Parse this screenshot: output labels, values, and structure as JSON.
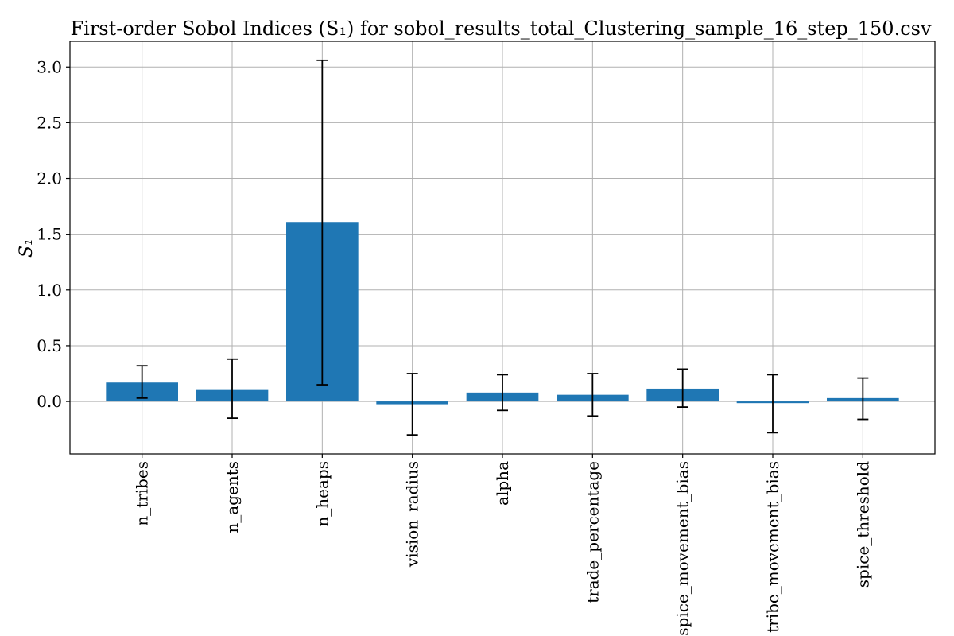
{
  "chart_data": {
    "type": "bar",
    "title": "First-order Sobol Indices (S₁) for sobol_results_total_Clustering_sample_16_step_150.csv",
    "ylabel": "S₁",
    "xlabel": "",
    "categories": [
      "n_tribes",
      "n_agents",
      "n_heaps",
      "vision_radius",
      "alpha",
      "trade_percentage",
      "spice_movement_bias",
      "tribe_movement_bias",
      "spice_threshold"
    ],
    "values": [
      0.17,
      0.11,
      1.61,
      -0.025,
      0.08,
      0.06,
      0.115,
      -0.015,
      0.03
    ],
    "error_low": [
      0.03,
      -0.15,
      0.15,
      -0.3,
      -0.08,
      -0.13,
      -0.05,
      -0.28,
      -0.16
    ],
    "error_high": [
      0.32,
      0.38,
      3.06,
      0.25,
      0.24,
      0.25,
      0.29,
      0.24,
      0.21
    ],
    "ylim": [
      -0.47,
      3.23
    ],
    "yticks": [
      0.0,
      0.5,
      1.0,
      1.5,
      2.0,
      2.5,
      3.0
    ],
    "ytick_labels": [
      "0.0",
      "0.5",
      "1.0",
      "1.5",
      "2.0",
      "2.5",
      "3.0"
    ],
    "grid": true,
    "bar_color": "#1f77b4"
  }
}
